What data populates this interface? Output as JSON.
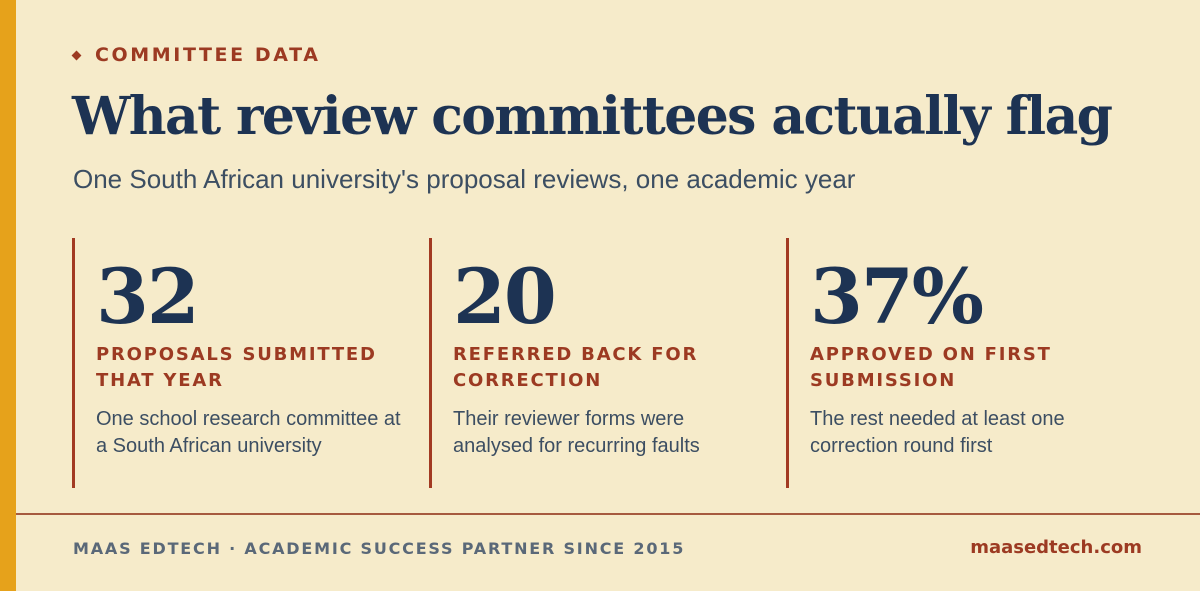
{
  "eyebrow": "COMMITTEE DATA",
  "title": "What review committees actually flag",
  "subtitle": "One South African university's proposal reviews, one academic year",
  "stats": [
    {
      "value": "32",
      "label": "PROPOSALS SUBMITTED THAT YEAR",
      "description": "One school research committee at a South African university"
    },
    {
      "value": "20",
      "label": "REFERRED BACK FOR CORRECTION",
      "description": "Their reviewer forms were analysed for recurring faults"
    },
    {
      "value": "37%",
      "label": "APPROVED ON FIRST SUBMISSION",
      "description": "The rest needed at least one correction round first"
    }
  ],
  "footer": {
    "brand_line": "MAAS EDTECH · ACADEMIC SUCCESS PARTNER SINCE 2015",
    "website": "maasedtech.com"
  },
  "colors": {
    "background": "#f6ebca",
    "accent_bar": "#e6a21b",
    "navy": "#1d3353",
    "rust": "#9c3a22",
    "body_text": "#3c4e62"
  }
}
